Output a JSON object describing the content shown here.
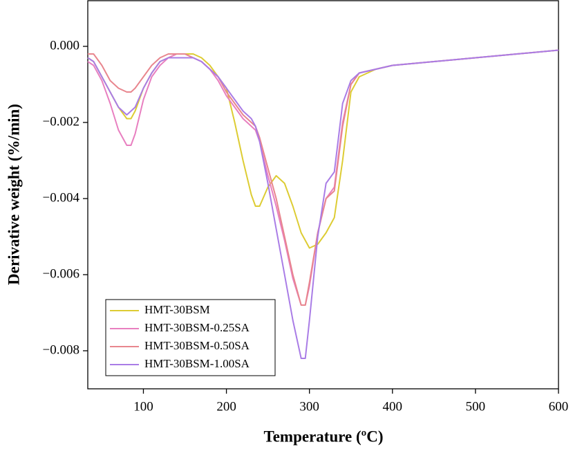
{
  "chart_data": {
    "type": "line",
    "xlabel": "Temperature (ºC)",
    "ylabel": "Derivative weight (%/min)",
    "x": [
      33,
      40,
      50,
      60,
      70,
      80,
      85,
      90,
      100,
      110,
      120,
      130,
      140,
      150,
      160,
      170,
      180,
      190,
      200,
      210,
      220,
      230,
      235,
      240,
      250,
      260,
      270,
      280,
      290,
      295,
      300,
      310,
      320,
      330,
      340,
      350,
      360,
      380,
      400,
      450,
      500,
      550,
      600
    ],
    "series": [
      {
        "name": "HMT-30BSM",
        "color": "#ddcc33",
        "values": [
          -0.0003,
          -0.0004,
          -0.0008,
          -0.0012,
          -0.0016,
          -0.0019,
          -0.0019,
          -0.0017,
          -0.0011,
          -0.0007,
          -0.0004,
          -0.0003,
          -0.0002,
          -0.0002,
          -0.0002,
          -0.0003,
          -0.0005,
          -0.0008,
          -0.0011,
          -0.002,
          -0.003,
          -0.0039,
          -0.0042,
          -0.0042,
          -0.0037,
          -0.0034,
          -0.0036,
          -0.0042,
          -0.0049,
          -0.0051,
          -0.0053,
          -0.0052,
          -0.0049,
          -0.0045,
          -0.003,
          -0.0012,
          -0.0008,
          -0.0006,
          -0.0005,
          -0.0004,
          -0.0003,
          -0.0002,
          -0.0001
        ]
      },
      {
        "name": "HMT-30BSM-0.25SA",
        "color": "#e87fc0",
        "values": [
          -0.0004,
          -0.0005,
          -0.0009,
          -0.0015,
          -0.0022,
          -0.0026,
          -0.0026,
          -0.0023,
          -0.0014,
          -0.0008,
          -0.0005,
          -0.0003,
          -0.0002,
          -0.0002,
          -0.0003,
          -0.0004,
          -0.0006,
          -0.0009,
          -0.0013,
          -0.0016,
          -0.0019,
          -0.0021,
          -0.0022,
          -0.0025,
          -0.0034,
          -0.0042,
          -0.0051,
          -0.0061,
          -0.0068,
          -0.0068,
          -0.0063,
          -0.0049,
          -0.004,
          -0.0037,
          -0.002,
          -0.001,
          -0.0007,
          -0.0006,
          -0.0005,
          -0.0004,
          -0.0003,
          -0.0002,
          -0.0001
        ]
      },
      {
        "name": "HMT-30BSM-0.50SA",
        "color": "#e8868e",
        "values": [
          -0.0002,
          -0.0002,
          -0.0005,
          -0.0009,
          -0.0011,
          -0.0012,
          -0.0012,
          -0.0011,
          -0.0008,
          -0.0005,
          -0.0003,
          -0.0002,
          -0.0002,
          -0.0002,
          -0.0003,
          -0.0004,
          -0.0006,
          -0.0008,
          -0.0012,
          -0.0015,
          -0.0018,
          -0.002,
          -0.0021,
          -0.0024,
          -0.0032,
          -0.004,
          -0.005,
          -0.006,
          -0.0068,
          -0.0068,
          -0.0062,
          -0.0049,
          -0.004,
          -0.0038,
          -0.0021,
          -0.001,
          -0.0007,
          -0.0006,
          -0.0005,
          -0.0004,
          -0.0003,
          -0.0002,
          -0.0001
        ]
      },
      {
        "name": "HMT-30BSM-1.00SA",
        "color": "#a97ce6",
        "values": [
          -0.0003,
          -0.0004,
          -0.0008,
          -0.0012,
          -0.0016,
          -0.0018,
          -0.0017,
          -0.0016,
          -0.0011,
          -0.0007,
          -0.0004,
          -0.0003,
          -0.0003,
          -0.0003,
          -0.0003,
          -0.0004,
          -0.0006,
          -0.0008,
          -0.0011,
          -0.0014,
          -0.0017,
          -0.0019,
          -0.0021,
          -0.0025,
          -0.0036,
          -0.0048,
          -0.006,
          -0.0072,
          -0.0082,
          -0.0082,
          -0.0072,
          -0.005,
          -0.0036,
          -0.0033,
          -0.0015,
          -0.0009,
          -0.0007,
          -0.0006,
          -0.0005,
          -0.0004,
          -0.0003,
          -0.0002,
          -0.0001
        ]
      }
    ],
    "xlim": [
      33,
      600
    ],
    "ylim": [
      -0.009,
      0.0012
    ],
    "xticks": [
      100,
      200,
      300,
      400,
      500,
      600
    ],
    "yticks": [
      {
        "value": 0,
        "label": "0.000"
      },
      {
        "value": -0.002,
        "label": "−0.002"
      },
      {
        "value": -0.004,
        "label": "−0.004"
      },
      {
        "value": -0.006,
        "label": "−0.006"
      },
      {
        "value": -0.008,
        "label": "−0.008"
      }
    ],
    "legend": "lower left"
  }
}
